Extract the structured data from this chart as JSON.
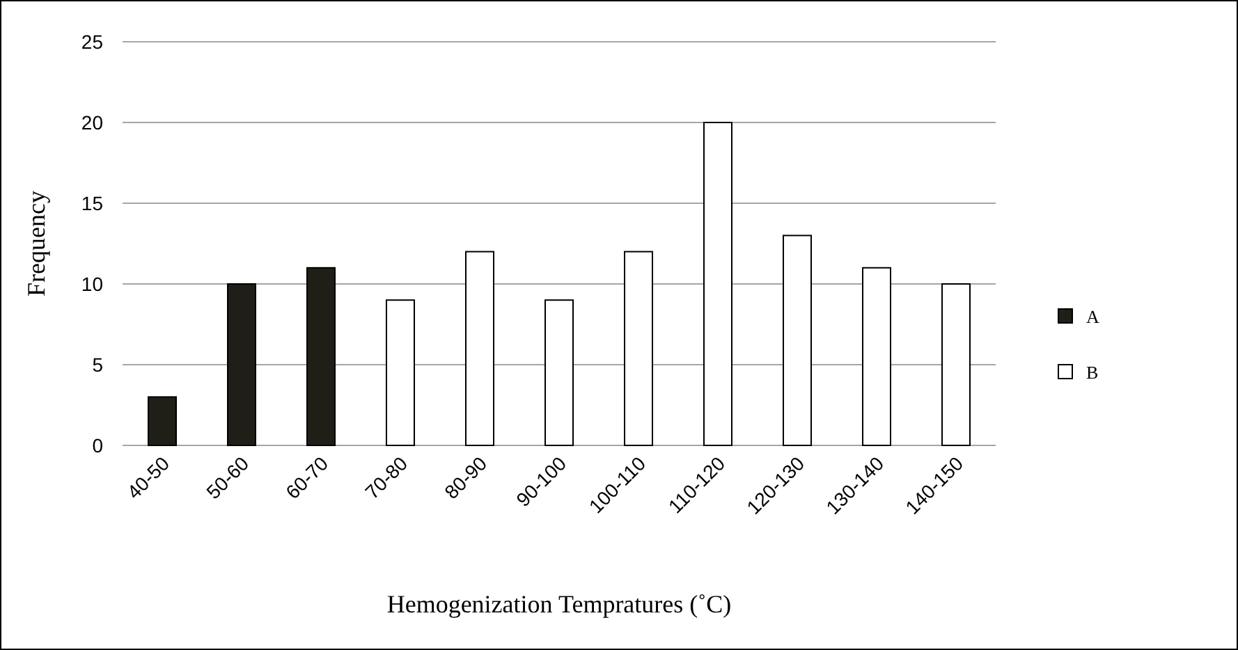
{
  "chart_data": {
    "type": "bar",
    "xlabel": "Hemogenization Tempratures (˚C)",
    "ylabel": "Frequency",
    "categories": [
      "40-50",
      "50-60",
      "60-70",
      "70-80",
      "80-90",
      "90-100",
      "100-110",
      "110-120",
      "120-130",
      "130-140",
      "140-150"
    ],
    "series": [
      {
        "name": "A",
        "color": "#1f1e17",
        "values": [
          3,
          10,
          11,
          null,
          null,
          null,
          null,
          null,
          null,
          null,
          null
        ]
      },
      {
        "name": "B",
        "color": "#ffffff",
        "values": [
          null,
          null,
          null,
          9,
          12,
          9,
          12,
          20,
          13,
          11,
          10
        ]
      }
    ],
    "ylim": [
      0,
      25
    ],
    "yticks": [
      0,
      5,
      10,
      15,
      20,
      25
    ],
    "grid": "y",
    "legend": "right"
  }
}
